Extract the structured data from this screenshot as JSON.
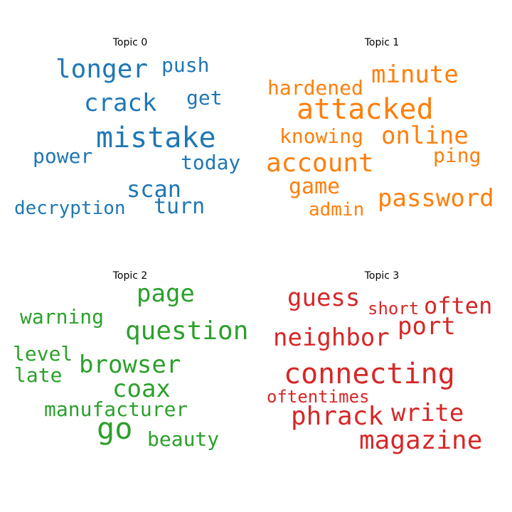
{
  "topics": [
    {
      "title": "Topic 0",
      "color": "#1f77b4",
      "words": [
        "longer",
        "push",
        "crack",
        "get",
        "mistake",
        "power",
        "today",
        "scan",
        "decryption",
        "turn"
      ]
    },
    {
      "title": "Topic 1",
      "color": "#ff7f0e",
      "words": [
        "minute",
        "hardened",
        "attacked",
        "knowing",
        "online",
        "ping",
        "account",
        "game",
        "password",
        "admin"
      ]
    },
    {
      "title": "Topic 2",
      "color": "#2ca02c",
      "words": [
        "page",
        "warning",
        "question",
        "level",
        "browser",
        "late",
        "coax",
        "manufacturer",
        "go",
        "beauty"
      ]
    },
    {
      "title": "Topic 3",
      "color": "#d62728",
      "words": [
        "guess",
        "short",
        "often",
        "port",
        "neighbor",
        "connecting",
        "oftentimes",
        "write",
        "phrack",
        "magazine"
      ]
    }
  ]
}
